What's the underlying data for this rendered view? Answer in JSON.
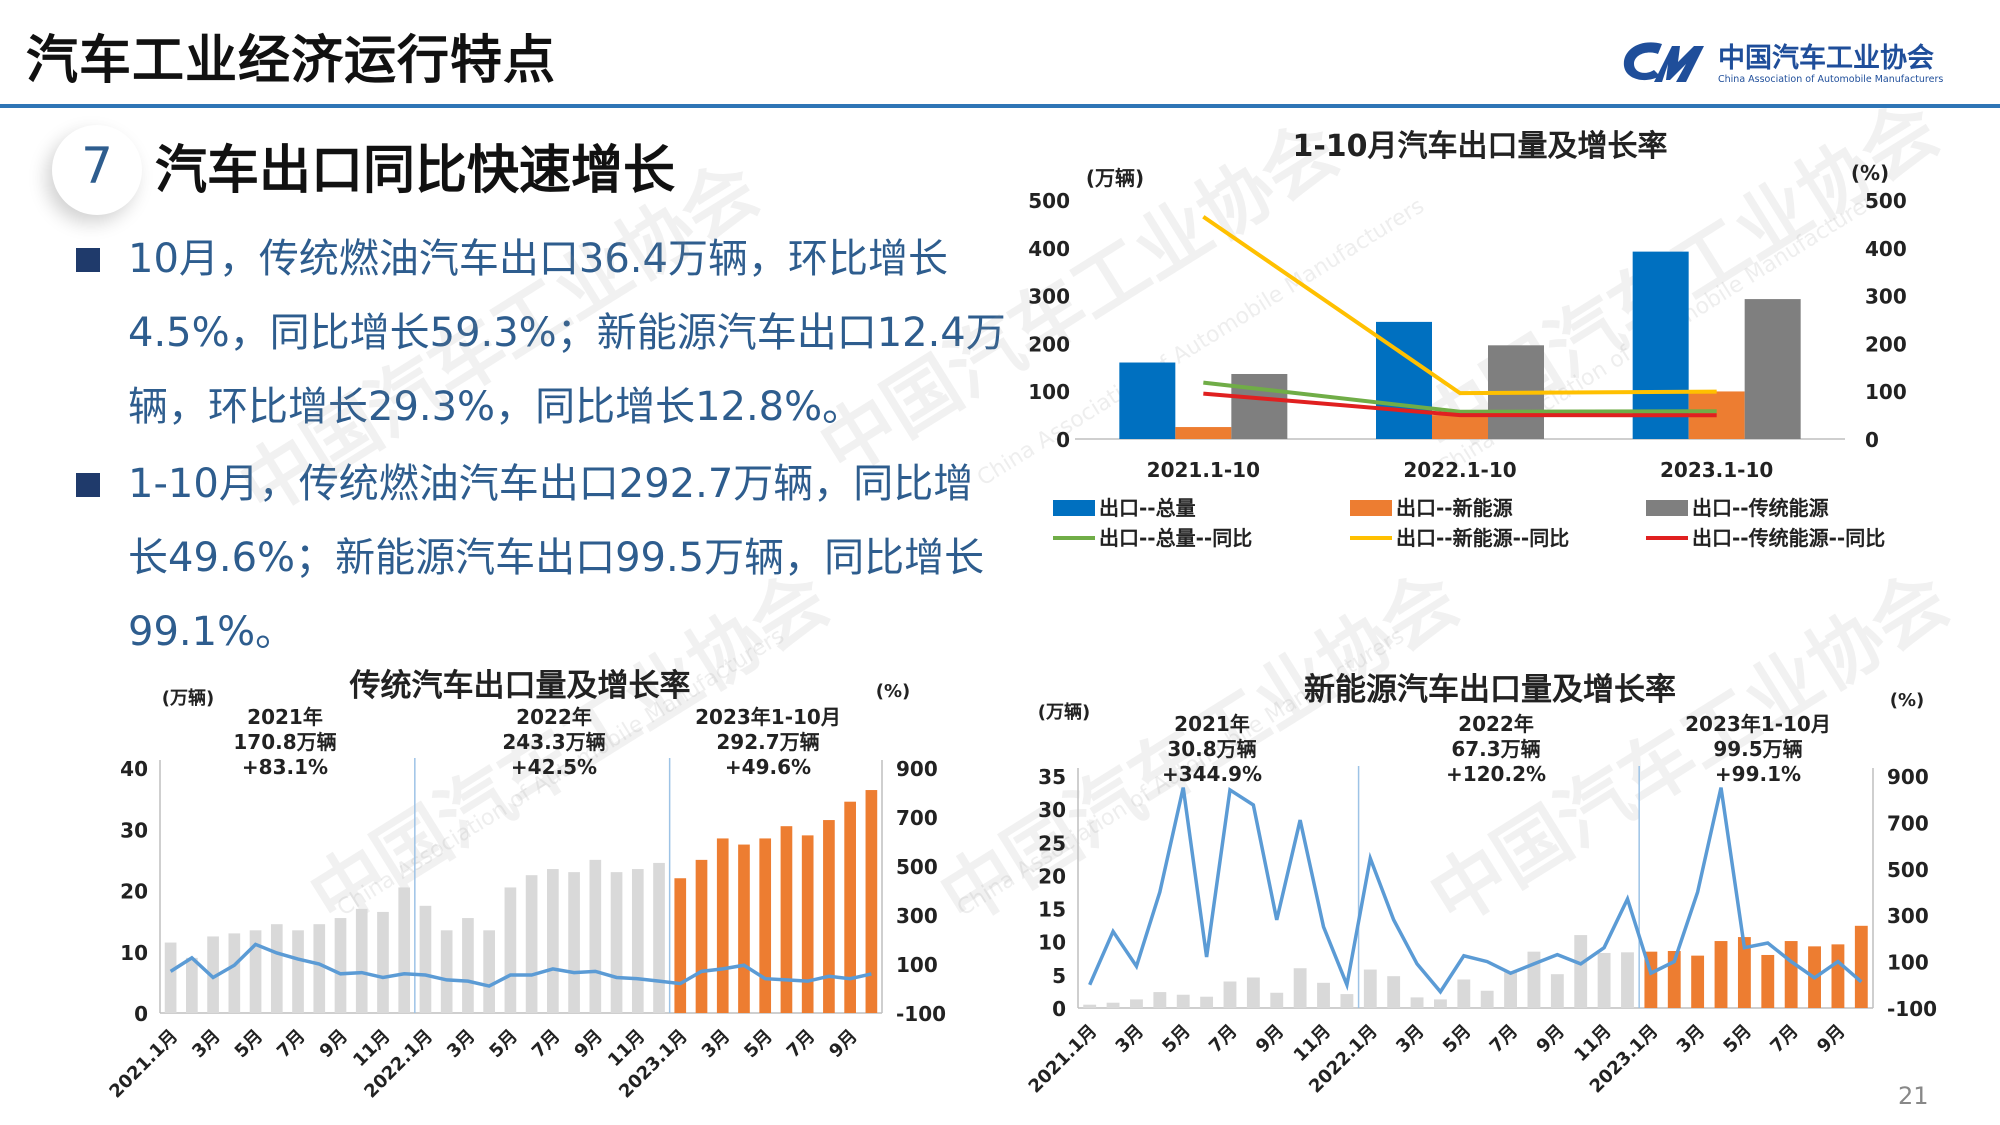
{
  "header": {
    "title": "汽车工业经济运行特点",
    "logo_cn": "中国汽车工业协会",
    "logo_en": "China Association of Automobile Manufacturers"
  },
  "section": {
    "number": "7",
    "title": "汽车出口同比快速增长"
  },
  "bullets": [
    "10月，传统燃油汽车出口36.4万辆，环比增长4.5%，同比增长59.3%；新能源汽车出口12.4万辆，环比增长29.3%，同比增长12.8%。",
    "1-10月，传统燃油汽车出口292.7万辆，同比增长49.6%；新能源汽车出口99.5万辆，同比增长99.1%。"
  ],
  "page_number": "21",
  "colors": {
    "blue": "#0070C0",
    "orange": "#ED7D31",
    "gray": "#7F7F7F",
    "green": "#70AD47",
    "yellow": "#FFC000",
    "red": "#E02020",
    "line_blue": "#5B9BD5",
    "bar_light": "#D9D9D9",
    "text_blue": "#2E5D8E"
  },
  "chart_data": [
    {
      "type": "bar",
      "title": "1-10月汽车出口量及增长率",
      "y_unit_left": "(万辆)",
      "y_unit_right": "(%)",
      "ylim_left": [
        0,
        500
      ],
      "ylim_right": [
        0,
        500
      ],
      "left_ticks": [
        "500",
        "400",
        "300",
        "200",
        "100",
        "0"
      ],
      "right_ticks": [
        "500",
        "400",
        "300",
        "200",
        "100",
        "0"
      ],
      "categories": [
        "2021.1-10",
        "2022.1-10",
        "2023.1-10"
      ],
      "series": [
        {
          "name": "出口--总量",
          "kind": "bar",
          "axis": "left",
          "color": "#0070C0",
          "values": [
            160,
            245,
            392
          ]
        },
        {
          "name": "出口--新能源",
          "kind": "bar",
          "axis": "left",
          "color": "#ED7D31",
          "values": [
            25,
            50,
            99.5
          ]
        },
        {
          "name": "出口--传统能源",
          "kind": "bar",
          "axis": "left",
          "color": "#7F7F7F",
          "values": [
            136,
            196,
            292.7
          ]
        },
        {
          "name": "出口--总量--同比",
          "kind": "line",
          "axis": "right",
          "color": "#70AD47",
          "values": [
            118,
            57,
            58
          ]
        },
        {
          "name": "出口--新能源--同比",
          "kind": "line",
          "axis": "right",
          "color": "#FFC000",
          "values": [
            465,
            96,
            99.1
          ]
        },
        {
          "name": "出口--传统能源--同比",
          "kind": "line",
          "axis": "right",
          "color": "#E02020",
          "values": [
            95,
            50,
            49.6
          ]
        }
      ],
      "legend_position": "bottom"
    },
    {
      "type": "bar",
      "title": "传统汽车出口量及增长率",
      "y_unit_left": "(万辆)",
      "y_unit_right": "(%)",
      "ylim_left": [
        0,
        40
      ],
      "ylim_right": [
        -100,
        900
      ],
      "left_ticks": [
        "40",
        "30",
        "20",
        "10",
        "0"
      ],
      "right_ticks": [
        "900",
        "700",
        "500",
        "300",
        "100",
        "-100"
      ],
      "x_labels": [
        "2021.1月",
        "3月",
        "5月",
        "7月",
        "9月",
        "11月",
        "2022.1月",
        "3月",
        "5月",
        "7月",
        "9月",
        "11月",
        "2023.1月",
        "3月",
        "5月",
        "7月",
        "9月"
      ],
      "bars": [
        11.5,
        9,
        12.5,
        13,
        13.5,
        14.5,
        13.5,
        14.5,
        15.5,
        17,
        16.5,
        20.5,
        17.5,
        13.5,
        15.5,
        13.5,
        20.5,
        22.5,
        23.5,
        23,
        25,
        23,
        23.5,
        24.5,
        22,
        25,
        28.5,
        27.5,
        28.5,
        30.5,
        29,
        31.5,
        34.5,
        36.4
      ],
      "growth_pct": [
        70,
        125,
        45,
        95,
        180,
        145,
        120,
        100,
        60,
        65,
        45,
        60,
        55,
        35,
        30,
        10,
        55,
        55,
        80,
        65,
        70,
        45,
        40,
        30,
        20,
        70,
        80,
        95,
        40,
        35,
        30,
        50,
        40,
        59.3
      ],
      "bar_colors_by_year": {
        "2021": "#D9D9D9",
        "2022": "#D9D9D9",
        "2023": "#ED7D31"
      },
      "annotations": [
        {
          "year": "2021年",
          "volume": "170.8万辆",
          "growth": "+83.1%"
        },
        {
          "year": "2022年",
          "volume": "243.3万辆",
          "growth": "+42.5%"
        },
        {
          "year": "2023年1-10月",
          "volume": "292.7万辆",
          "growth": "+49.6%"
        }
      ]
    },
    {
      "type": "bar",
      "title": "新能源汽车出口量及增长率",
      "y_unit_left": "(万辆)",
      "y_unit_right": "(%)",
      "ylim_left": [
        0,
        35
      ],
      "ylim_right": [
        -100,
        900
      ],
      "left_ticks": [
        "35",
        "30",
        "25",
        "20",
        "15",
        "10",
        "5",
        "0"
      ],
      "right_ticks": [
        "900",
        "700",
        "500",
        "300",
        "100",
        "-100"
      ],
      "x_labels": [
        "2021.1月",
        "3月",
        "5月",
        "7月",
        "9月",
        "11月",
        "2022.1月",
        "3月",
        "5月",
        "7月",
        "9月",
        "11月",
        "2023.1月",
        "3月",
        "5月",
        "7月",
        "9月"
      ],
      "bars": [
        0.5,
        0.8,
        1.3,
        2.4,
        2.0,
        1.7,
        4.0,
        4.6,
        2.3,
        6.0,
        3.8,
        2.1,
        5.8,
        4.8,
        1.6,
        1.3,
        4.3,
        2.6,
        5.4,
        8.5,
        5.1,
        11.0,
        8.3,
        8.4,
        8.5,
        8.6,
        7.9,
        10.1,
        10.7,
        8.0,
        10.1,
        9.3,
        9.6,
        12.4
      ],
      "growth_pct": [
        0,
        230,
        80,
        400,
        850,
        120,
        840,
        775,
        280,
        710,
        250,
        0,
        545,
        280,
        90,
        -30,
        125,
        100,
        50,
        90,
        130,
        90,
        160,
        370,
        50,
        100,
        400,
        850,
        160,
        180,
        100,
        30,
        100,
        12.8
      ],
      "bar_colors_by_year": {
        "2021": "#D9D9D9",
        "2022": "#D9D9D9",
        "2023": "#ED7D31"
      },
      "annotations": [
        {
          "year": "2021年",
          "volume": "30.8万辆",
          "growth": "+344.9%"
        },
        {
          "year": "2022年",
          "volume": "67.3万辆",
          "growth": "+120.2%"
        },
        {
          "year": "2023年1-10月",
          "volume": "99.5万辆",
          "growth": "+99.1%"
        }
      ]
    }
  ]
}
